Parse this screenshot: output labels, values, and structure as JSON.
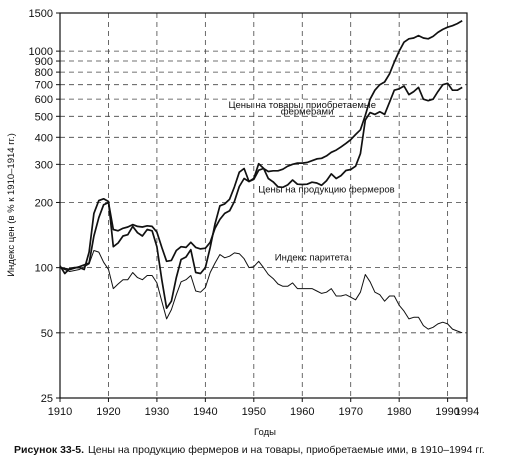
{
  "chart_data": {
    "type": "line",
    "title": "",
    "xlabel": "Годы",
    "ylabel": "Индекс цен (в % к 1910–1914 гг.)",
    "yscale": "log",
    "xlim": [
      1910,
      1994
    ],
    "ylim": [
      25,
      1500
    ],
    "x_ticks": [
      1910,
      1920,
      1930,
      1940,
      1950,
      1960,
      1970,
      1980,
      1990,
      1994
    ],
    "y_ticks": [
      25,
      50,
      100,
      200,
      300,
      400,
      500,
      600,
      700,
      800,
      900,
      1000,
      1500
    ],
    "grid": "dashed",
    "legend": "none",
    "series": [
      {
        "name": "Цены на товары, приобретаемые фермерами",
        "color": "#111111",
        "points": [
          [
            1910,
            100
          ],
          [
            1912,
            98
          ],
          [
            1914,
            101
          ],
          [
            1916,
            105
          ],
          [
            1917,
            140
          ],
          [
            1918,
            170
          ],
          [
            1919,
            195
          ],
          [
            1920,
            200
          ],
          [
            1921,
            150
          ],
          [
            1922,
            148
          ],
          [
            1923,
            152
          ],
          [
            1924,
            154
          ],
          [
            1925,
            158
          ],
          [
            1926,
            155
          ],
          [
            1927,
            154
          ],
          [
            1928,
            156
          ],
          [
            1929,
            155
          ],
          [
            1930,
            146
          ],
          [
            1931,
            124
          ],
          [
            1932,
            107
          ],
          [
            1933,
            108
          ],
          [
            1934,
            120
          ],
          [
            1935,
            125
          ],
          [
            1936,
            124
          ],
          [
            1937,
            131
          ],
          [
            1938,
            124
          ],
          [
            1939,
            122
          ],
          [
            1940,
            123
          ],
          [
            1941,
            131
          ],
          [
            1942,
            152
          ],
          [
            1943,
            167
          ],
          [
            1944,
            178
          ],
          [
            1945,
            183
          ],
          [
            1946,
            202
          ],
          [
            1947,
            237
          ],
          [
            1948,
            258
          ],
          [
            1949,
            250
          ],
          [
            1950,
            256
          ],
          [
            1951,
            282
          ],
          [
            1952,
            287
          ],
          [
            1953,
            278
          ],
          [
            1954,
            280
          ],
          [
            1955,
            280
          ],
          [
            1956,
            285
          ],
          [
            1957,
            294
          ],
          [
            1958,
            300
          ],
          [
            1959,
            304
          ],
          [
            1960,
            304
          ],
          [
            1961,
            306
          ],
          [
            1962,
            312
          ],
          [
            1963,
            318
          ],
          [
            1964,
            320
          ],
          [
            1965,
            328
          ],
          [
            1966,
            341
          ],
          [
            1967,
            349
          ],
          [
            1968,
            361
          ],
          [
            1969,
            375
          ],
          [
            1970,
            390
          ],
          [
            1971,
            412
          ],
          [
            1972,
            433
          ],
          [
            1973,
            505
          ],
          [
            1974,
            600
          ],
          [
            1975,
            660
          ],
          [
            1976,
            700
          ],
          [
            1977,
            720
          ],
          [
            1978,
            785
          ],
          [
            1979,
            890
          ],
          [
            1980,
            1000
          ],
          [
            1981,
            1100
          ],
          [
            1982,
            1140
          ],
          [
            1983,
            1150
          ],
          [
            1984,
            1180
          ],
          [
            1985,
            1150
          ],
          [
            1986,
            1140
          ],
          [
            1987,
            1170
          ],
          [
            1988,
            1220
          ],
          [
            1989,
            1260
          ],
          [
            1990,
            1290
          ],
          [
            1991,
            1310
          ],
          [
            1992,
            1340
          ],
          [
            1993,
            1380
          ]
        ]
      },
      {
        "name": "Цены на продукцию фермеров",
        "color": "#111111",
        "points": [
          [
            1910,
            102
          ],
          [
            1911,
            94
          ],
          [
            1912,
            99
          ],
          [
            1913,
            100
          ],
          [
            1914,
            100
          ],
          [
            1915,
            98
          ],
          [
            1916,
            118
          ],
          [
            1917,
            178
          ],
          [
            1918,
            204
          ],
          [
            1919,
            208
          ],
          [
            1920,
            202
          ],
          [
            1921,
            125
          ],
          [
            1922,
            130
          ],
          [
            1923,
            140
          ],
          [
            1924,
            142
          ],
          [
            1925,
            155
          ],
          [
            1926,
            145
          ],
          [
            1927,
            140
          ],
          [
            1928,
            150
          ],
          [
            1929,
            148
          ],
          [
            1930,
            125
          ],
          [
            1931,
            88
          ],
          [
            1932,
            65
          ],
          [
            1933,
            70
          ],
          [
            1934,
            90
          ],
          [
            1935,
            109
          ],
          [
            1936,
            112
          ],
          [
            1937,
            121
          ],
          [
            1938,
            95
          ],
          [
            1939,
            94
          ],
          [
            1940,
            100
          ],
          [
            1941,
            124
          ],
          [
            1942,
            159
          ],
          [
            1943,
            193
          ],
          [
            1944,
            197
          ],
          [
            1945,
            207
          ],
          [
            1946,
            236
          ],
          [
            1947,
            276
          ],
          [
            1948,
            287
          ],
          [
            1949,
            250
          ],
          [
            1950,
            258
          ],
          [
            1951,
            302
          ],
          [
            1952,
            288
          ],
          [
            1953,
            258
          ],
          [
            1954,
            249
          ],
          [
            1955,
            236
          ],
          [
            1956,
            235
          ],
          [
            1957,
            241
          ],
          [
            1958,
            254
          ],
          [
            1959,
            243
          ],
          [
            1960,
            242
          ],
          [
            1961,
            243
          ],
          [
            1962,
            248
          ],
          [
            1963,
            246
          ],
          [
            1964,
            240
          ],
          [
            1965,
            252
          ],
          [
            1966,
            271
          ],
          [
            1967,
            258
          ],
          [
            1968,
            266
          ],
          [
            1969,
            281
          ],
          [
            1970,
            284
          ],
          [
            1971,
            294
          ],
          [
            1972,
            336
          ],
          [
            1973,
            480
          ],
          [
            1974,
            520
          ],
          [
            1975,
            510
          ],
          [
            1976,
            525
          ],
          [
            1977,
            510
          ],
          [
            1978,
            580
          ],
          [
            1979,
            660
          ],
          [
            1980,
            670
          ],
          [
            1981,
            690
          ],
          [
            1982,
            630
          ],
          [
            1983,
            650
          ],
          [
            1984,
            680
          ],
          [
            1985,
            600
          ],
          [
            1986,
            590
          ],
          [
            1987,
            600
          ],
          [
            1988,
            650
          ],
          [
            1989,
            700
          ],
          [
            1990,
            710
          ],
          [
            1991,
            660
          ],
          [
            1992,
            660
          ],
          [
            1993,
            680
          ]
        ]
      },
      {
        "name": "Индекс паритета",
        "color": "#111111",
        "points": [
          [
            1910,
            100
          ],
          [
            1912,
            96
          ],
          [
            1914,
            98
          ],
          [
            1916,
            104
          ],
          [
            1917,
            120
          ],
          [
            1918,
            118
          ],
          [
            1919,
            106
          ],
          [
            1920,
            98
          ],
          [
            1921,
            80
          ],
          [
            1922,
            84
          ],
          [
            1923,
            88
          ],
          [
            1924,
            88
          ],
          [
            1925,
            95
          ],
          [
            1926,
            90
          ],
          [
            1927,
            88
          ],
          [
            1928,
            92
          ],
          [
            1929,
            92
          ],
          [
            1930,
            85
          ],
          [
            1931,
            70
          ],
          [
            1932,
            58
          ],
          [
            1933,
            64
          ],
          [
            1934,
            75
          ],
          [
            1935,
            86
          ],
          [
            1936,
            88
          ],
          [
            1937,
            92
          ],
          [
            1938,
            78
          ],
          [
            1939,
            77
          ],
          [
            1940,
            81
          ],
          [
            1941,
            95
          ],
          [
            1942,
            105
          ],
          [
            1943,
            115
          ],
          [
            1944,
            111
          ],
          [
            1945,
            113
          ],
          [
            1946,
            117
          ],
          [
            1947,
            116
          ],
          [
            1948,
            110
          ],
          [
            1949,
            100
          ],
          [
            1950,
            101
          ],
          [
            1951,
            107
          ],
          [
            1952,
            100
          ],
          [
            1953,
            93
          ],
          [
            1954,
            89
          ],
          [
            1955,
            84
          ],
          [
            1956,
            82
          ],
          [
            1957,
            82
          ],
          [
            1958,
            85
          ],
          [
            1959,
            80
          ],
          [
            1960,
            80
          ],
          [
            1961,
            80
          ],
          [
            1962,
            80
          ],
          [
            1963,
            78
          ],
          [
            1964,
            76
          ],
          [
            1965,
            77
          ],
          [
            1966,
            80
          ],
          [
            1967,
            74
          ],
          [
            1968,
            74
          ],
          [
            1969,
            75
          ],
          [
            1970,
            73
          ],
          [
            1971,
            71
          ],
          [
            1972,
            77
          ],
          [
            1973,
            93
          ],
          [
            1974,
            86
          ],
          [
            1975,
            77
          ],
          [
            1976,
            75
          ],
          [
            1977,
            70
          ],
          [
            1978,
            74
          ],
          [
            1979,
            74
          ],
          [
            1980,
            67
          ],
          [
            1981,
            63
          ],
          [
            1982,
            58
          ],
          [
            1983,
            59
          ],
          [
            1984,
            59
          ],
          [
            1985,
            54
          ],
          [
            1986,
            52
          ],
          [
            1987,
            53
          ],
          [
            1988,
            55
          ],
          [
            1989,
            56
          ],
          [
            1990,
            55
          ],
          [
            1991,
            52
          ],
          [
            1992,
            51
          ],
          [
            1993,
            50
          ]
        ]
      }
    ],
    "annotations": [
      {
        "text": "Цены на товары, приобретаемые",
        "x": 1960,
        "y": 545
      },
      {
        "text": "фермерами",
        "x": 1961,
        "y": 510
      },
      {
        "text": "Цены на продукцию фермеров",
        "x": 1965,
        "y": 222
      },
      {
        "text": "Индекс паритета",
        "x": 1962,
        "y": 108
      }
    ]
  },
  "caption": {
    "label": "Рисунок 33-5.",
    "text": "Цены на продукцию фермеров и на товары, приобретаемые ими, в 1910–1994 гг."
  }
}
